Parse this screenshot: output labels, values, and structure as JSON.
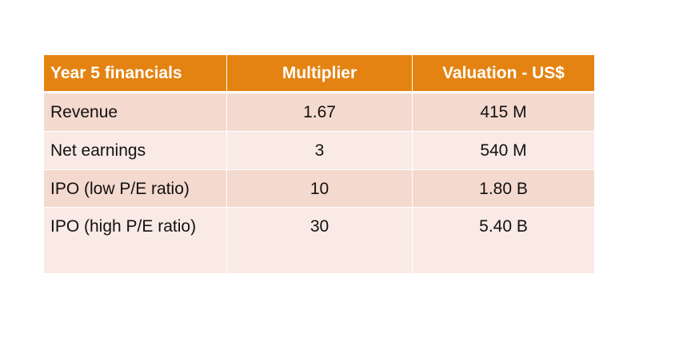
{
  "table": {
    "headers": [
      "Year 5 financials",
      "Multiplier",
      "Valuation - US$"
    ],
    "rows": [
      [
        "Revenue",
        "1.67",
        "415 M"
      ],
      [
        "Net earnings",
        "3",
        "540 M"
      ],
      [
        "IPO (low P/E ratio)",
        "10",
        "1.80 B"
      ],
      [
        "IPO (high P/E ratio)",
        "30",
        "5.40 B"
      ]
    ]
  },
  "colors": {
    "header": "#E48312",
    "row_odd": "#F4D9CE",
    "row_even": "#F9EAE5"
  }
}
